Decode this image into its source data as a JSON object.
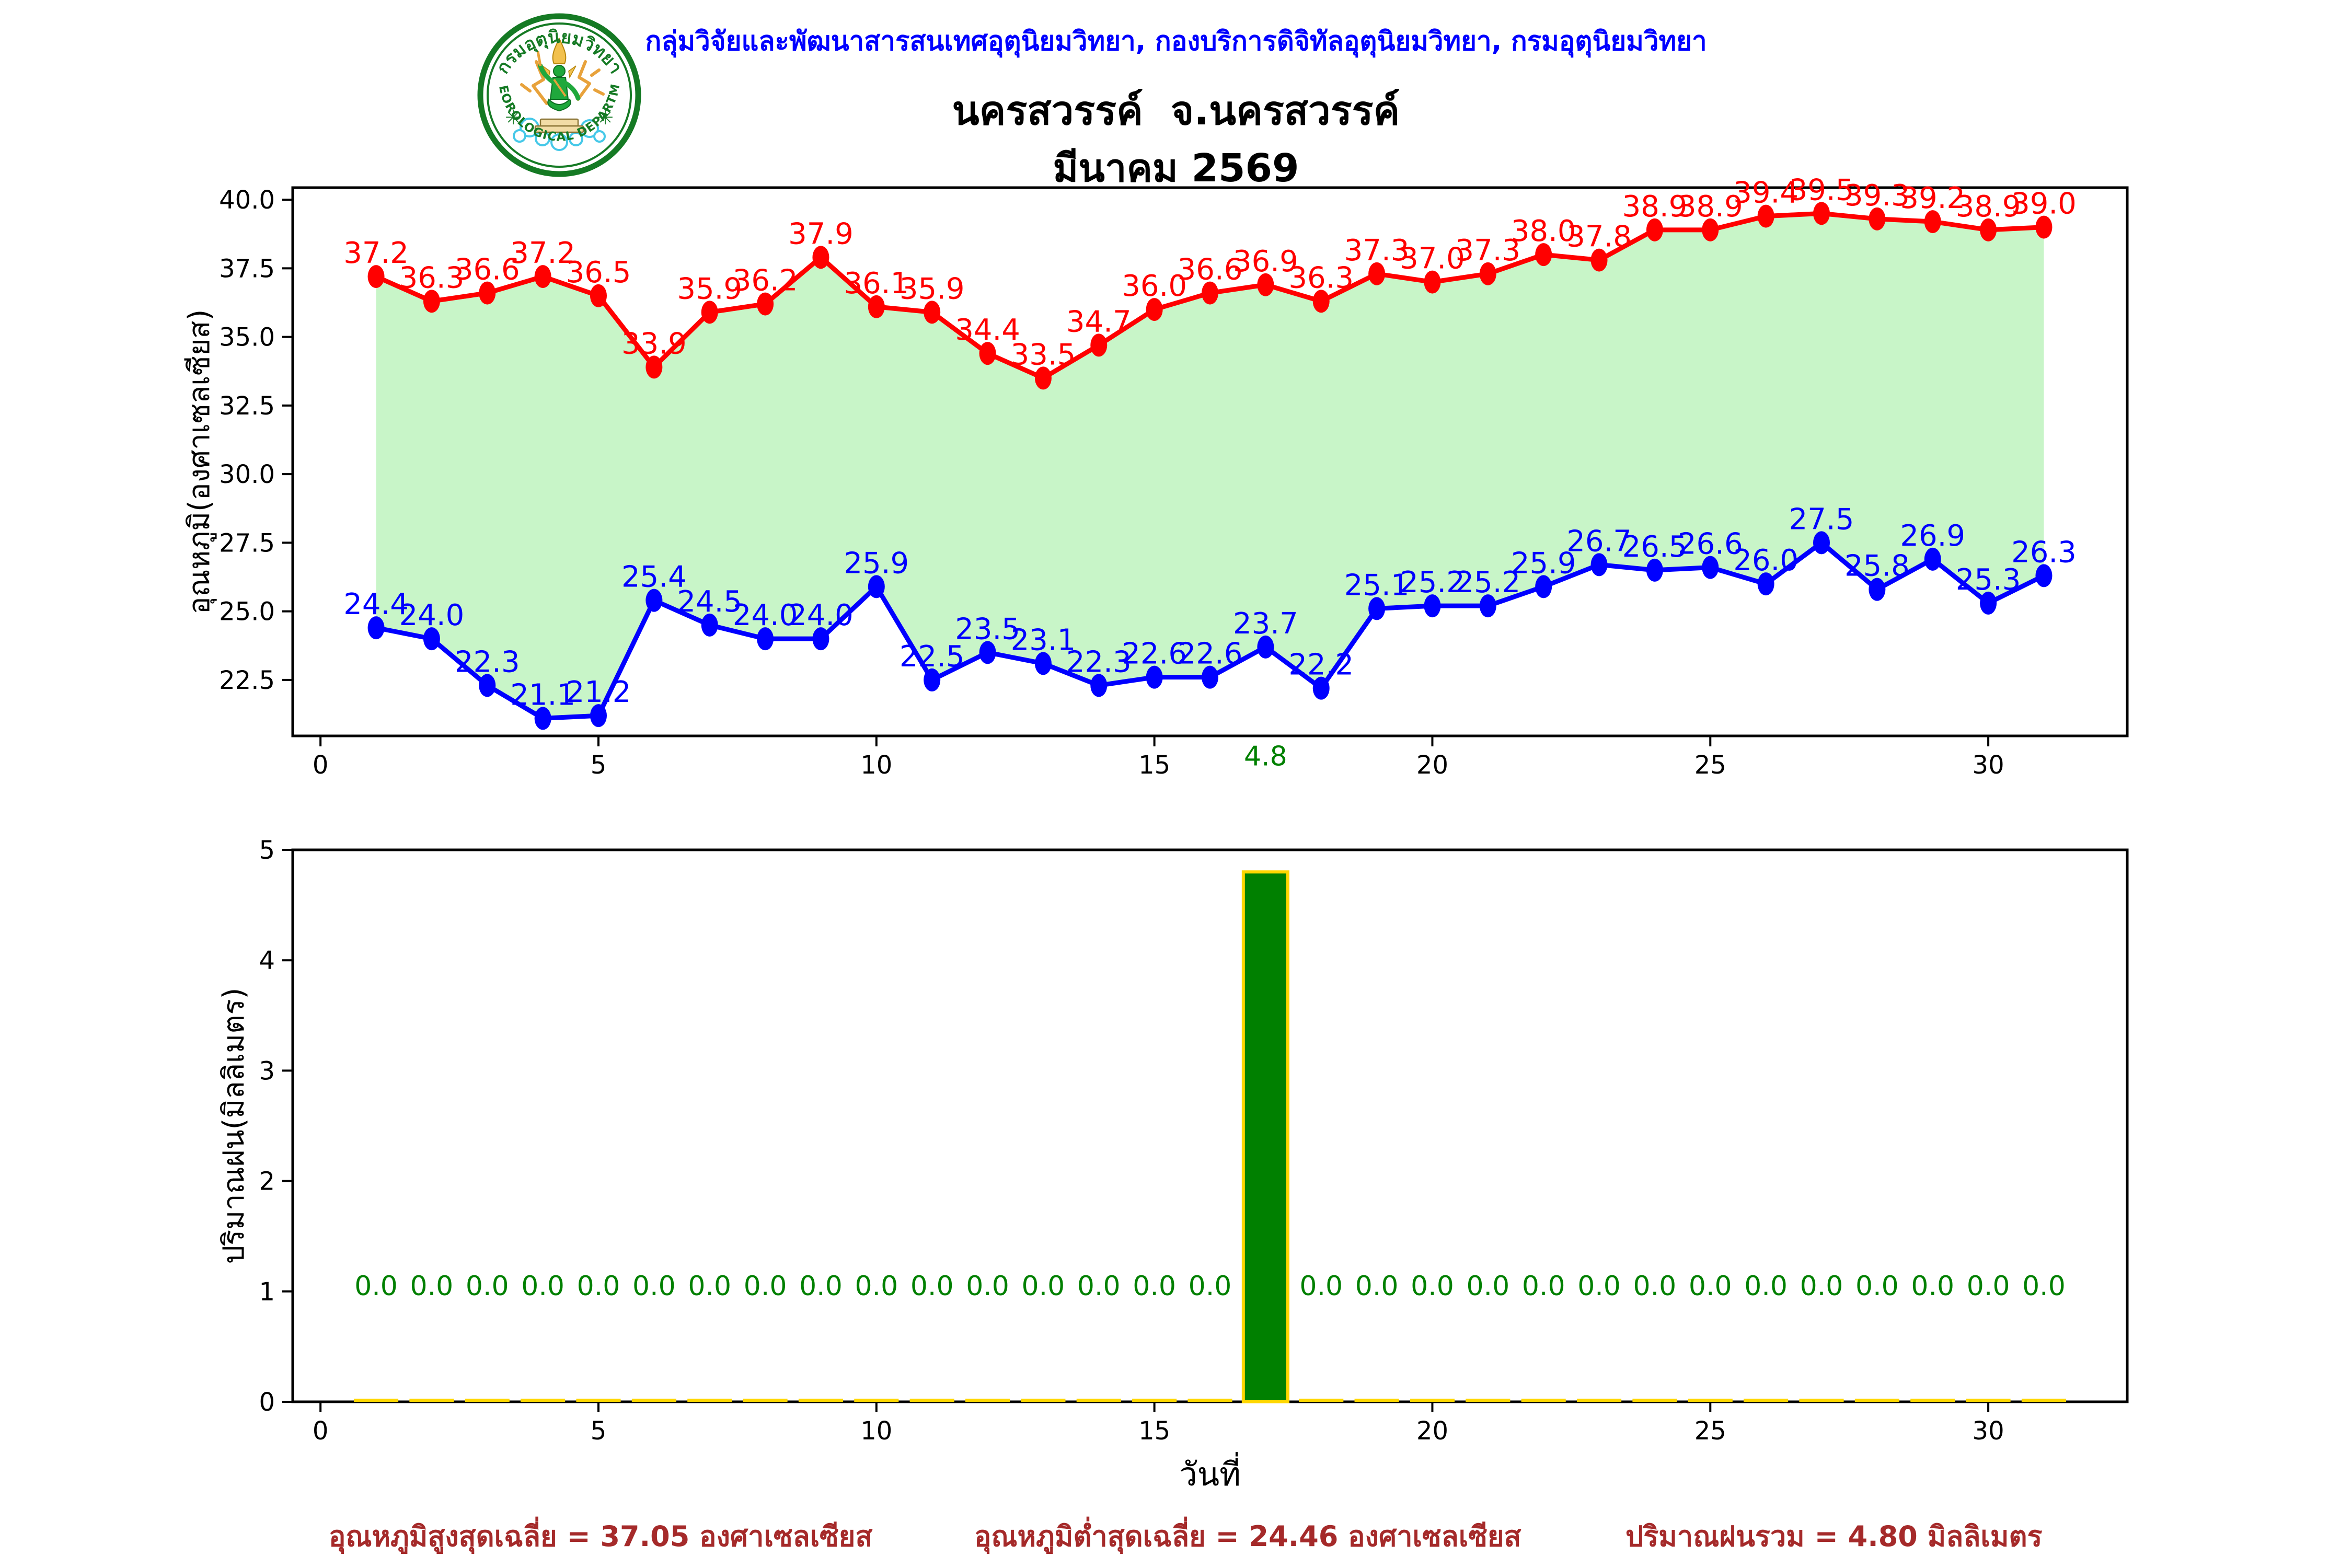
{
  "header": {
    "org_line": "กลุ่มวิจัยและพัฒนาสารสนเทศอุตุนิยมวิทยา, กองบริการดิจิทัลอุตุนิยมวิทยา, กรมอุตุนิยมวิทยา",
    "title": "นครสวรรค์  จ.นครสวรรค์",
    "subtitle": "มีนาคม 2569"
  },
  "logo": {
    "top_text": "กรมอุตุนิยมวิทยา",
    "bottom_text": "METEOROLOGICAL DEPARTMENT"
  },
  "colors": {
    "header_blue": "#0000FF",
    "max_temp_red": "#FF0000",
    "min_temp_blue": "#0000FF",
    "fill_green": "#C8F5C8",
    "bar_green": "#008000",
    "bar_edge_gold": "#FFD700",
    "label_green": "#008000",
    "summary_brown": "#A52A2A",
    "axis_black": "#000000"
  },
  "chart_data": [
    {
      "type": "line",
      "ylabel": "อุณหภูมิ(องศาเซลเซียส)",
      "x": [
        1,
        2,
        3,
        4,
        5,
        6,
        7,
        8,
        9,
        10,
        11,
        12,
        13,
        14,
        15,
        16,
        17,
        18,
        19,
        20,
        21,
        22,
        23,
        24,
        25,
        26,
        27,
        28,
        29,
        30,
        31
      ],
      "series": [
        {
          "name": "max-temp",
          "color": "#FF0000",
          "values": [
            37.2,
            36.3,
            36.6,
            37.2,
            36.5,
            33.9,
            35.9,
            36.2,
            37.9,
            36.1,
            35.9,
            34.4,
            33.5,
            34.7,
            36.0,
            36.6,
            36.9,
            36.3,
            37.3,
            37.0,
            37.3,
            38.0,
            37.8,
            38.9,
            38.9,
            39.4,
            39.5,
            39.3,
            39.2,
            38.9,
            39.0
          ],
          "labels": [
            "37.2",
            "36.3",
            "36.6",
            "37.2",
            "36.5",
            "33.9",
            "35.9",
            "36.2",
            "37.9",
            "36.1",
            "35.9",
            "34.4",
            "33.5",
            "34.7",
            "36.0",
            "36.6",
            "36.9",
            "36.3",
            "37.3",
            "37.0",
            "37.3",
            "38.0",
            "37.8",
            "38.9",
            "38.9",
            "39.4",
            "39.5",
            "39.3",
            "39.2",
            "38.9",
            "39.0"
          ]
        },
        {
          "name": "min-temp",
          "color": "#0000FF",
          "values": [
            24.4,
            24.0,
            22.3,
            21.1,
            21.2,
            25.4,
            24.5,
            24.0,
            24.0,
            25.9,
            22.5,
            23.5,
            23.1,
            22.3,
            22.6,
            22.6,
            23.7,
            22.2,
            25.1,
            25.2,
            25.2,
            25.9,
            26.7,
            26.5,
            26.6,
            26.0,
            27.5,
            25.8,
            26.9,
            25.3,
            26.3
          ],
          "labels": [
            "24.4",
            "24.0",
            "22.3",
            "21.1",
            "21.2",
            "25.4",
            "24.5",
            "24.0",
            "24.0",
            "25.9",
            "22.5",
            "23.5",
            "23.1",
            "22.3",
            "22.6",
            "22.6",
            "23.7",
            "22.2",
            "25.1",
            "25.2",
            "25.2",
            "25.9",
            "26.7",
            "26.5",
            "26.6",
            "26.0",
            "27.5",
            "25.8",
            "26.9",
            "25.3",
            "26.3"
          ]
        }
      ],
      "fill_between": true,
      "fill_color": "#C8F5C8",
      "ylim": [
        20.46,
        40.44
      ],
      "yticks": [
        22.5,
        25.0,
        27.5,
        30.0,
        32.5,
        35.0,
        37.5,
        40.0
      ],
      "ytick_labels": [
        "22.5",
        "25.0",
        "27.5",
        "30.0",
        "32.5",
        "35.0",
        "37.5",
        "40.0"
      ],
      "xticks": [
        0,
        5,
        10,
        15,
        20,
        25,
        30
      ],
      "xtick_labels": [
        "0",
        "5",
        "10",
        "15",
        "20",
        "25",
        "30"
      ],
      "xlim": [
        -0.5,
        32.5
      ],
      "grid": false,
      "legend": null
    },
    {
      "type": "bar",
      "xlabel": "วันที่",
      "ylabel": "ปริมาณฝน(มิลลิเมตร)",
      "x": [
        1,
        2,
        3,
        4,
        5,
        6,
        7,
        8,
        9,
        10,
        11,
        12,
        13,
        14,
        15,
        16,
        17,
        18,
        19,
        20,
        21,
        22,
        23,
        24,
        25,
        26,
        27,
        28,
        29,
        30,
        31
      ],
      "values": [
        0,
        0,
        0,
        0,
        0,
        0,
        0,
        0,
        0,
        0,
        0,
        0,
        0,
        0,
        0,
        0,
        4.8,
        0,
        0,
        0,
        0,
        0,
        0,
        0,
        0,
        0,
        0,
        0,
        0,
        0,
        0
      ],
      "bar_labels": [
        "0.0",
        "0.0",
        "0.0",
        "0.0",
        "0.0",
        "0.0",
        "0.0",
        "0.0",
        "0.0",
        "0.0",
        "0.0",
        "0.0",
        "0.0",
        "0.0",
        "0.0",
        "0.0",
        "4.8",
        "0.0",
        "0.0",
        "0.0",
        "0.0",
        "0.0",
        "0.0",
        "0.0",
        "0.0",
        "0.0",
        "0.0",
        "0.0",
        "0.0",
        "0.0",
        "0.0"
      ],
      "label_y_offset": 1.05,
      "bar_width": 0.8,
      "bar_color": "#008000",
      "bar_edge_color": "#FFD700",
      "label_color": "#008000",
      "ylim": [
        0,
        5
      ],
      "yticks": [
        0,
        1,
        2,
        3,
        4,
        5
      ],
      "ytick_labels": [
        "0",
        "1",
        "2",
        "3",
        "4",
        "5"
      ],
      "xticks": [
        0,
        5,
        10,
        15,
        20,
        25,
        30
      ],
      "xtick_labels": [
        "0",
        "5",
        "10",
        "15",
        "20",
        "25",
        "30"
      ],
      "xlim": [
        -0.5,
        32.5
      ],
      "grid": false
    }
  ],
  "summary": {
    "max_avg": "อุณหภูมิสูงสุดเฉลี่ย = 37.05 องศาเซลเซียส",
    "min_avg": "อุณหภูมิต่ำสุดเฉลี่ย = 24.46 องศาเซลเซียส",
    "rain_total": "ปริมาณฝนรวม = 4.80 มิลลิเมตร"
  }
}
